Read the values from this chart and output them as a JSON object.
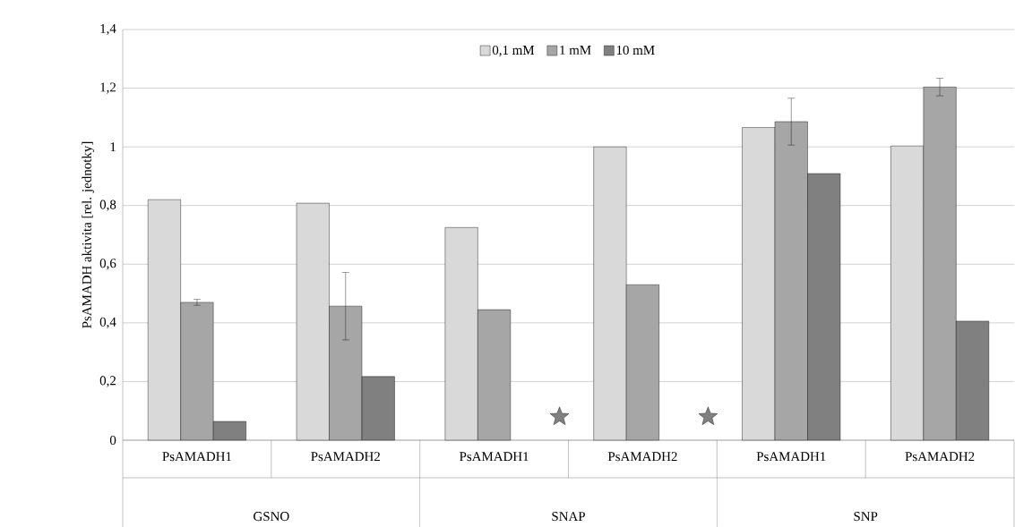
{
  "chart_data": {
    "type": "bar",
    "ylabel": "PsAMADH aktivita [rel. jednotky]",
    "categories": [
      "PsAMADH1",
      "PsAMADH2",
      "PsAMADH1",
      "PsAMADH2",
      "PsAMADH1",
      "PsAMADH2"
    ],
    "annotations": [
      "GSNO",
      "SNAP",
      "SNP"
    ],
    "series": [
      {
        "name": "0,1 mM",
        "color": "#d9d9d9",
        "values": [
          0.82,
          0.808,
          0.725,
          1.0,
          1.066,
          1.003
        ]
      },
      {
        "name": "1 mM",
        "color": "#a6a6a6",
        "values": [
          0.47,
          0.457,
          0.445,
          0.53,
          1.086,
          1.204
        ],
        "errors": [
          0.01,
          0.115,
          null,
          null,
          0.08,
          0.03
        ]
      },
      {
        "name": "10 mM",
        "color": "#808080",
        "values": [
          0.064,
          0.217,
          null,
          null,
          0.909,
          0.406
        ]
      },
      {
        "type": "scatter",
        "marker": "star",
        "color": "#808080",
        "values": [
          null,
          null,
          0.08,
          0.08,
          null,
          null
        ]
      }
    ],
    "ylim": [
      0,
      1.4
    ],
    "yticks": [
      0,
      {
        "value": 0.2,
        "label": "0,2"
      },
      {
        "value": 0.4,
        "label": "0,4"
      },
      {
        "value": 0.6,
        "label": "0,6"
      },
      {
        "value": 0.8,
        "label": "0,8"
      },
      1,
      {
        "value": 1.2,
        "label": "1,2"
      },
      {
        "value": 1.4,
        "label": "1,4"
      }
    ],
    "grid": "y",
    "legend": "top"
  }
}
